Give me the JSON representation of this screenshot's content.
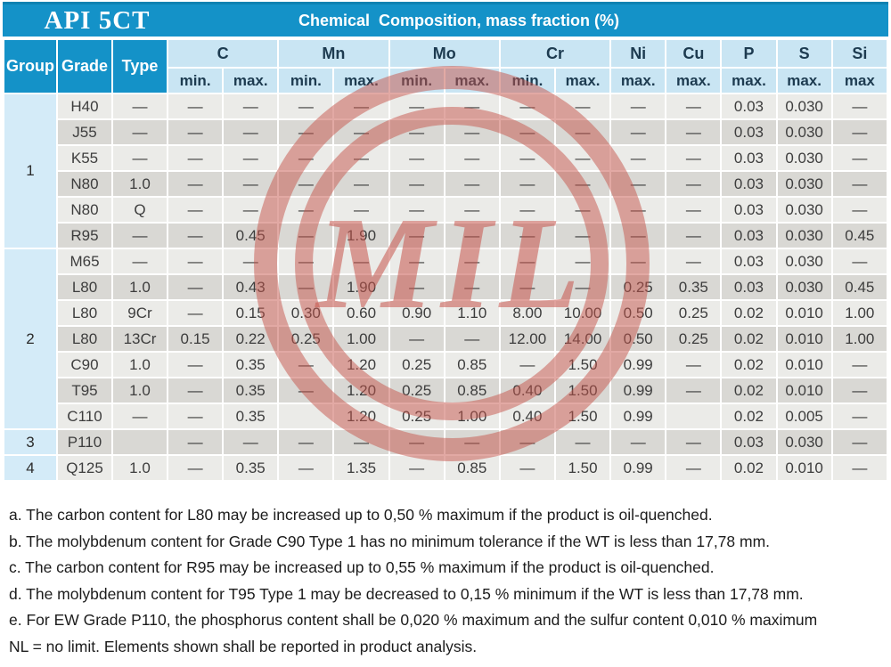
{
  "title": "API 5CT",
  "subtitle": "Chemical  Composition, mass fraction (%)",
  "watermark": {
    "text": "MIL"
  },
  "table": {
    "corner_headers": {
      "group": "Group",
      "grade": "Grade",
      "type": "Type"
    },
    "element_headers": [
      {
        "label": "C",
        "subs": [
          "min.",
          "max."
        ]
      },
      {
        "label": "Mn",
        "subs": [
          "min.",
          "max."
        ]
      },
      {
        "label": "Mo",
        "subs": [
          "min.",
          "max."
        ]
      },
      {
        "label": "Cr",
        "subs": [
          "min.",
          "max."
        ]
      },
      {
        "label": "Ni",
        "subs": [
          "max."
        ]
      },
      {
        "label": "Cu",
        "subs": [
          "max."
        ]
      },
      {
        "label": "P",
        "subs": [
          "max."
        ]
      },
      {
        "label": "S",
        "subs": [
          "max."
        ]
      },
      {
        "label": "Si",
        "subs": [
          "max"
        ]
      }
    ],
    "rows": [
      {
        "group": "1",
        "group_span": 6,
        "grade": "H40",
        "type": "—",
        "values": [
          "—",
          "—",
          "—",
          "—",
          "—",
          "—",
          "—",
          "—",
          "—",
          "—",
          "0.03",
          "0.030",
          "—"
        ]
      },
      {
        "grade": "J55",
        "type": "—",
        "values": [
          "—",
          "—",
          "—",
          "—",
          "—",
          "—",
          "—",
          "—",
          "—",
          "—",
          "0.03",
          "0.030",
          "—"
        ]
      },
      {
        "grade": "K55",
        "type": "—",
        "values": [
          "—",
          "—",
          "—",
          "—",
          "—",
          "—",
          "—",
          "—",
          "—",
          "—",
          "0.03",
          "0.030",
          "—"
        ]
      },
      {
        "grade": "N80",
        "type": "1.0",
        "values": [
          "—",
          "—",
          "—",
          "—",
          "—",
          "—",
          "—",
          "—",
          "—",
          "—",
          "0.03",
          "0.030",
          "—"
        ]
      },
      {
        "grade": "N80",
        "type": "Q",
        "values": [
          "—",
          "—",
          "—",
          "—",
          "—",
          "—",
          "—",
          "—",
          "—",
          "—",
          "0.03",
          "0.030",
          "—"
        ]
      },
      {
        "grade": "R95",
        "type": "—",
        "values": [
          "—",
          "0.45",
          "—",
          "1.90",
          "—",
          "—",
          "—",
          "—",
          "—",
          "—",
          "0.03",
          "0.030",
          "0.45"
        ]
      },
      {
        "group": "2",
        "group_span": 7,
        "grade": "M65",
        "type": "—",
        "values": [
          "—",
          "—",
          "—",
          "—",
          "—",
          "—",
          "—",
          "—",
          "—",
          "—",
          "0.03",
          "0.030",
          "—"
        ]
      },
      {
        "grade": "L80",
        "type": "1.0",
        "values": [
          "—",
          "0.43",
          "—",
          "1.90",
          "—",
          "—",
          "—",
          "—",
          "0.25",
          "0.35",
          "0.03",
          "0.030",
          "0.45"
        ]
      },
      {
        "grade": "L80",
        "type": "9Cr",
        "values": [
          "—",
          "0.15",
          "0.30",
          "0.60",
          "0.90",
          "1.10",
          "8.00",
          "10.00",
          "0.50",
          "0.25",
          "0.02",
          "0.010",
          "1.00"
        ]
      },
      {
        "grade": "L80",
        "type": "13Cr",
        "values": [
          "0.15",
          "0.22",
          "0.25",
          "1.00",
          "—",
          "—",
          "12.00",
          "14.00",
          "0.50",
          "0.25",
          "0.02",
          "0.010",
          "1.00"
        ]
      },
      {
        "grade": "C90",
        "type": "1.0",
        "values": [
          "—",
          "0.35",
          "—",
          "1.20",
          "0.25",
          "0.85",
          "—",
          "1.50",
          "0.99",
          "—",
          "0.02",
          "0.010",
          "—"
        ]
      },
      {
        "grade": "T95",
        "type": "1.0",
        "values": [
          "—",
          "0.35",
          "—",
          "1.20",
          "0.25",
          "0.85",
          "0.40",
          "1.50",
          "0.99",
          "—",
          "0.02",
          "0.010",
          "—"
        ]
      },
      {
        "grade": "C110",
        "type": "—",
        "values": [
          "—",
          "0.35",
          "",
          "1.20",
          "0.25",
          "1.00",
          "0.40",
          "1.50",
          "0.99",
          "",
          "0.02",
          "0.005",
          "—"
        ]
      },
      {
        "group": "3",
        "group_span": 1,
        "grade": "P110",
        "type": "",
        "values": [
          "—",
          "—",
          "—",
          "—",
          "—",
          "—",
          "—",
          "—",
          "—",
          "—",
          "0.03",
          "0.030",
          "—"
        ]
      },
      {
        "group": "4",
        "group_span": 1,
        "grade": "Q125",
        "type": "1.0",
        "values": [
          "—",
          "0.35",
          "—",
          "1.35",
          "—",
          "0.85",
          "—",
          "1.50",
          "0.99",
          "—",
          "0.02",
          "0.010",
          "—"
        ]
      }
    ]
  },
  "footnotes": [
    "a. The carbon content for L80 may be increased up to 0,50 % maximum if the product is oil-quenched.",
    "b. The molybdenum content for Grade C90 Type 1 has no minimum tolerance if the WT is less than 17,78 mm.",
    "c. The carbon content for R95 may be increased up to 0,55 % maximum if the product is oil-quenched.",
    "d. The molybdenum content for T95 Type 1 may be decreased to 0,15 % minimum if the WT is less than 17,78 mm.",
    "e. For EW Grade P110, the phosphorus content shall be 0,020 % maximum and the sulfur content 0,010 % maximum",
    "NL = no limit. Elements shown shall be reported in product analysis."
  ],
  "colors": {
    "header_blue": "#1492c8",
    "subheader_blue": "#c9e5f3",
    "group_column_blue": "#d4ebf8",
    "row_light": "#ebebe8",
    "row_dark": "#d9d8d4",
    "header_text": "#1d3b50",
    "watermark_red": "#c6534a"
  }
}
